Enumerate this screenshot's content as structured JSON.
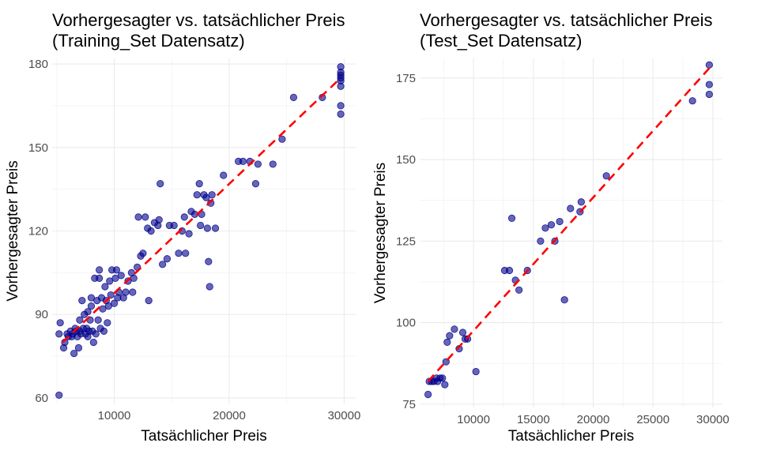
{
  "chart_data": [
    {
      "type": "scatter",
      "title_line1": "Vorhergesagter vs. tatsächlicher Preis",
      "title_line2": "(Training_Set Datensatz)",
      "xlabel": "Tatsächlicher Preis",
      "ylabel": "Vorhergesagter Preis",
      "xlim": [
        4600,
        31000
      ],
      "ylim": [
        58,
        182
      ],
      "xticks": [
        10000,
        20000,
        30000
      ],
      "yticks": [
        60,
        90,
        120,
        150,
        180
      ],
      "xtick_labels": [
        "10000",
        "20000",
        "30000"
      ],
      "ytick_labels": [
        "60",
        "90",
        "120",
        "150",
        "180"
      ],
      "grid": true,
      "point_color": "#00008B",
      "line_color": "#FF0000",
      "fit_line": [
        [
          5500,
          80
        ],
        [
          29700,
          175
        ]
      ],
      "points": [
        [
          5200,
          61
        ],
        [
          5200,
          83
        ],
        [
          5300,
          87
        ],
        [
          5600,
          78
        ],
        [
          5700,
          80
        ],
        [
          5900,
          83
        ],
        [
          6000,
          82
        ],
        [
          6200,
          84
        ],
        [
          6300,
          82
        ],
        [
          6400,
          83
        ],
        [
          6500,
          76
        ],
        [
          6600,
          85
        ],
        [
          6700,
          84
        ],
        [
          6800,
          82
        ],
        [
          6900,
          78
        ],
        [
          7000,
          84
        ],
        [
          7000,
          88
        ],
        [
          7100,
          83
        ],
        [
          7200,
          95
        ],
        [
          7300,
          85
        ],
        [
          7400,
          90
        ],
        [
          7500,
          83
        ],
        [
          7600,
          85
        ],
        [
          7700,
          82
        ],
        [
          7700,
          91
        ],
        [
          7800,
          84
        ],
        [
          7900,
          88
        ],
        [
          8000,
          96
        ],
        [
          8000,
          93
        ],
        [
          8100,
          84
        ],
        [
          8200,
          80
        ],
        [
          8300,
          103
        ],
        [
          8400,
          83
        ],
        [
          8500,
          95
        ],
        [
          8600,
          88
        ],
        [
          8700,
          103
        ],
        [
          8700,
          106
        ],
        [
          8800,
          85
        ],
        [
          8900,
          96
        ],
        [
          9000,
          92
        ],
        [
          9100,
          84
        ],
        [
          9200,
          100
        ],
        [
          9300,
          95
        ],
        [
          9400,
          87
        ],
        [
          9500,
          93
        ],
        [
          9600,
          102
        ],
        [
          9700,
          97
        ],
        [
          9800,
          106
        ],
        [
          10000,
          94
        ],
        [
          10100,
          103
        ],
        [
          10200,
          106
        ],
        [
          10300,
          96
        ],
        [
          10400,
          98
        ],
        [
          10600,
          104
        ],
        [
          10800,
          96
        ],
        [
          11000,
          98
        ],
        [
          11200,
          102
        ],
        [
          11500,
          105
        ],
        [
          11600,
          98
        ],
        [
          11700,
          103
        ],
        [
          12000,
          107
        ],
        [
          12100,
          125
        ],
        [
          12300,
          111
        ],
        [
          12500,
          112
        ],
        [
          12700,
          125
        ],
        [
          12900,
          121
        ],
        [
          13000,
          95
        ],
        [
          13200,
          120
        ],
        [
          13500,
          123
        ],
        [
          13800,
          122
        ],
        [
          13900,
          124
        ],
        [
          14000,
          137
        ],
        [
          14200,
          108
        ],
        [
          14600,
          110
        ],
        [
          14800,
          122
        ],
        [
          15200,
          122
        ],
        [
          15600,
          112
        ],
        [
          15900,
          120
        ],
        [
          16100,
          125
        ],
        [
          16200,
          112
        ],
        [
          16500,
          119
        ],
        [
          16700,
          127
        ],
        [
          17000,
          126
        ],
        [
          17200,
          133
        ],
        [
          17400,
          137
        ],
        [
          17500,
          122
        ],
        [
          17600,
          126
        ],
        [
          17800,
          133
        ],
        [
          18000,
          132
        ],
        [
          18100,
          121
        ],
        [
          18200,
          109
        ],
        [
          18300,
          100
        ],
        [
          18400,
          130
        ],
        [
          18500,
          133
        ],
        [
          18800,
          121
        ],
        [
          19500,
          140
        ],
        [
          20800,
          145
        ],
        [
          21200,
          145
        ],
        [
          21800,
          145
        ],
        [
          22300,
          137
        ],
        [
          22500,
          144
        ],
        [
          23800,
          144
        ],
        [
          24600,
          153
        ],
        [
          25600,
          168
        ],
        [
          28100,
          168
        ],
        [
          29700,
          162
        ],
        [
          29700,
          165
        ],
        [
          29700,
          172
        ],
        [
          29700,
          174
        ],
        [
          29700,
          175
        ],
        [
          29700,
          176
        ],
        [
          29700,
          177
        ],
        [
          29700,
          179
        ]
      ]
    },
    {
      "type": "scatter",
      "title_line1": "Vorhergesagter vs. tatsächlicher Preis",
      "title_line2": "(Test_Set Datensatz)",
      "xlabel": "Tatsächlicher Preis",
      "ylabel": "Vorhergesagter Preis",
      "xlim": [
        5500,
        30800
      ],
      "ylim": [
        74,
        181
      ],
      "xticks": [
        10000,
        15000,
        20000,
        25000,
        30000
      ],
      "yticks": [
        75,
        100,
        125,
        150,
        175
      ],
      "xtick_labels": [
        "10000",
        "15000",
        "20000",
        "25000",
        "30000"
      ],
      "ytick_labels": [
        "75",
        "100",
        "125",
        "150",
        "175"
      ],
      "grid": true,
      "point_color": "#00008B",
      "line_color": "#FF0000",
      "fit_line": [
        [
          6200,
          82
        ],
        [
          29700,
          178
        ]
      ],
      "points": [
        [
          6200,
          78
        ],
        [
          6300,
          82
        ],
        [
          6500,
          82
        ],
        [
          6700,
          82
        ],
        [
          6900,
          83
        ],
        [
          7000,
          82
        ],
        [
          7200,
          83
        ],
        [
          7400,
          83
        ],
        [
          7600,
          81
        ],
        [
          7700,
          88
        ],
        [
          7800,
          94
        ],
        [
          8000,
          96
        ],
        [
          8400,
          98
        ],
        [
          8800,
          92
        ],
        [
          9100,
          97
        ],
        [
          9300,
          95
        ],
        [
          9500,
          95
        ],
        [
          10200,
          85
        ],
        [
          12600,
          116
        ],
        [
          13000,
          116
        ],
        [
          13200,
          132
        ],
        [
          13500,
          113
        ],
        [
          13800,
          110
        ],
        [
          14500,
          116
        ],
        [
          15600,
          125
        ],
        [
          16000,
          129
        ],
        [
          16500,
          130
        ],
        [
          16800,
          125
        ],
        [
          17200,
          131
        ],
        [
          17600,
          107
        ],
        [
          18100,
          135
        ],
        [
          18900,
          134
        ],
        [
          19000,
          137
        ],
        [
          21100,
          145
        ],
        [
          28300,
          168
        ],
        [
          29700,
          170
        ],
        [
          29700,
          173
        ],
        [
          29700,
          179
        ]
      ]
    }
  ]
}
